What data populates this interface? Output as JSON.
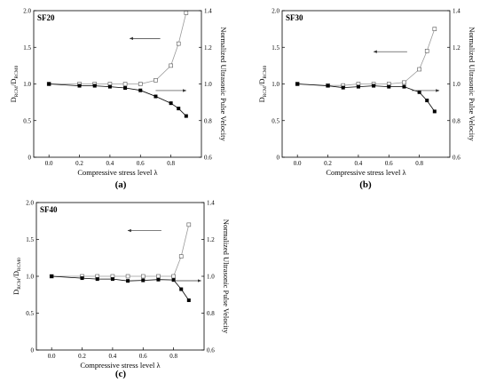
{
  "chart_data": [
    {
      "type": "line",
      "title": "SF20",
      "caption": "(a)",
      "xlabel": "Compressive stress level λ",
      "ylabel_left_main": "D",
      "ylabel_left_sub1": "RCM",
      "ylabel_left_mid": "/D",
      "ylabel_left_sub2": "RCM0",
      "ylabel_right": "Normalized Ultrasonic Pulse Velocity",
      "xlim": [
        -0.1,
        1.0
      ],
      "ylim_left": [
        0,
        2.0
      ],
      "ylim_right": [
        0.6,
        1.4
      ],
      "xticks": [
        "0.0",
        "0.2",
        "0.4",
        "0.6",
        "0.8"
      ],
      "yticks_left": [
        "0",
        "0.5",
        "1.0",
        "1.5",
        "2.0"
      ],
      "yticks_right": [
        "0.6",
        "0.8",
        "1.0",
        "1.2",
        "1.4"
      ],
      "series": [
        {
          "axis": "left",
          "marker": "open-square",
          "x": [
            0,
            0.2,
            0.3,
            0.4,
            0.5,
            0.6,
            0.7,
            0.8,
            0.85,
            0.9
          ],
          "y": [
            1.0,
            1.0,
            1.0,
            1.0,
            1.0,
            1.0,
            1.05,
            1.25,
            1.55,
            1.97
          ]
        },
        {
          "axis": "right",
          "marker": "filled-square",
          "x": [
            0,
            0.2,
            0.3,
            0.4,
            0.5,
            0.6,
            0.7,
            0.8,
            0.85,
            0.9
          ],
          "y": [
            1.0,
            0.99,
            0.99,
            0.985,
            0.978,
            0.965,
            0.932,
            0.895,
            0.866,
            0.825
          ]
        }
      ],
      "arrows": [
        {
          "from": [
            0.73,
            1.62
          ],
          "to": [
            0.53,
            1.62
          ]
        },
        {
          "from": [
            0.7,
            0.91
          ],
          "to": [
            0.9,
            0.91
          ]
        }
      ]
    },
    {
      "type": "line",
      "title": "SF30",
      "caption": "(b)",
      "xlabel": "Compressive stress level λ",
      "ylabel_left_main": "D",
      "ylabel_left_sub1": "RCM",
      "ylabel_left_mid": "/D",
      "ylabel_left_sub2": "RCM0",
      "ylabel_right": "Normalized Ultrasonic Pulse Velocity",
      "xlim": [
        -0.1,
        1.0
      ],
      "ylim_left": [
        0,
        2.0
      ],
      "ylim_right": [
        0.6,
        1.4
      ],
      "xticks": [
        "0.0",
        "0.2",
        "0.4",
        "0.6",
        "0.8"
      ],
      "yticks_left": [
        "0",
        "0.5",
        "1.0",
        "1.5",
        "2.0"
      ],
      "yticks_right": [
        "0.6",
        "0.8",
        "1.0",
        "1.2",
        "1.4"
      ],
      "series": [
        {
          "axis": "left",
          "marker": "open-square",
          "x": [
            0,
            0.2,
            0.3,
            0.4,
            0.5,
            0.6,
            0.7,
            0.8,
            0.85,
            0.9
          ],
          "y": [
            1.0,
            0.98,
            0.98,
            1.0,
            1.0,
            1.0,
            1.02,
            1.2,
            1.45,
            1.75
          ]
        },
        {
          "axis": "right",
          "marker": "filled-square",
          "x": [
            0,
            0.2,
            0.3,
            0.4,
            0.5,
            0.6,
            0.7,
            0.8,
            0.85,
            0.9
          ],
          "y": [
            1.0,
            0.99,
            0.98,
            0.985,
            0.99,
            0.985,
            0.985,
            0.955,
            0.91,
            0.85
          ]
        }
      ],
      "arrows": [
        {
          "from": [
            0.72,
            1.44
          ],
          "to": [
            0.5,
            1.44
          ]
        },
        {
          "from": [
            0.75,
            0.91
          ],
          "to": [
            0.93,
            0.91
          ]
        }
      ]
    },
    {
      "type": "line",
      "title": "SF40",
      "caption": "(c)",
      "xlabel": "Compressive stress level λ",
      "ylabel_left_main": "D",
      "ylabel_left_sub1": "RCM",
      "ylabel_left_mid": "/D",
      "ylabel_left_sub2": "RCM0",
      "ylabel_right": "Normalized Ultrasonic Pulse Velocity",
      "xlim": [
        -0.1,
        1.0
      ],
      "ylim_left": [
        0,
        2.0
      ],
      "ylim_right": [
        0.6,
        1.4
      ],
      "xticks": [
        "0.0",
        "0.2",
        "0.4",
        "0.6",
        "0.8"
      ],
      "yticks_left": [
        "0",
        "0.5",
        "1.0",
        "1.5",
        "2.0"
      ],
      "yticks_right": [
        "0.6",
        "0.8",
        "1.0",
        "1.2",
        "1.4"
      ],
      "series": [
        {
          "axis": "left",
          "marker": "open-square",
          "x": [
            0,
            0.2,
            0.3,
            0.4,
            0.5,
            0.6,
            0.7,
            0.8,
            0.85,
            0.9
          ],
          "y": [
            1.0,
            1.0,
            1.0,
            1.0,
            1.0,
            1.0,
            1.0,
            1.0,
            1.27,
            1.7
          ]
        },
        {
          "axis": "right",
          "marker": "filled-square",
          "x": [
            0,
            0.2,
            0.3,
            0.4,
            0.5,
            0.6,
            0.7,
            0.8,
            0.85,
            0.9
          ],
          "y": [
            1.0,
            0.99,
            0.985,
            0.985,
            0.975,
            0.978,
            0.982,
            0.98,
            0.93,
            0.87
          ]
        }
      ],
      "arrows": [
        {
          "from": [
            0.72,
            1.62
          ],
          "to": [
            0.5,
            1.62
          ]
        },
        {
          "from": [
            0.8,
            0.94
          ],
          "to": [
            0.98,
            0.94
          ]
        }
      ]
    }
  ]
}
